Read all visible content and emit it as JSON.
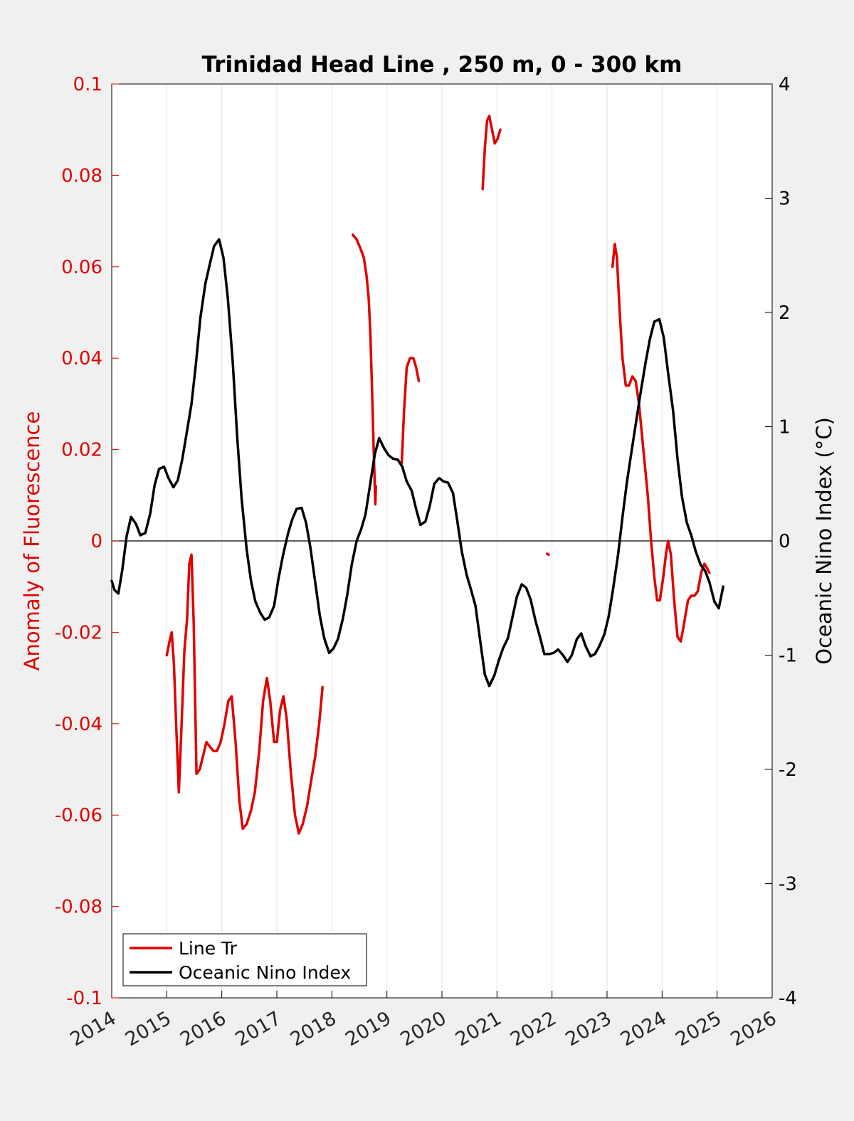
{
  "chart_data": {
    "type": "line",
    "title": "Trinidad Head Line , 250 m, 0 - 300 km",
    "ylabel_left": "Anomaly of Fluorescence",
    "ylabel_right": "Oceanic Nino Index (°C)",
    "xlim": [
      2014,
      2026
    ],
    "ylim_left": [
      -0.1,
      0.1
    ],
    "ylim_right": [
      -4,
      4
    ],
    "grid": "vertical",
    "legend_position": "bottom-left",
    "x_ticks": [
      "2014",
      "2015",
      "2016",
      "2017",
      "2018",
      "2019",
      "2020",
      "2021",
      "2022",
      "2023",
      "2024",
      "2025",
      "2026"
    ],
    "y_ticks_left": [
      "0.1",
      "0.08",
      "0.06",
      "0.04",
      "0.02",
      "0",
      "-0.02",
      "-0.04",
      "-0.06",
      "-0.08",
      "-0.1"
    ],
    "y_ticks_right": [
      "4",
      "3",
      "2",
      "1",
      "0",
      "-1",
      "-2",
      "-3",
      "-4"
    ],
    "colors": {
      "line_tr": "#e00000",
      "oni": "#000000",
      "left_axis": "#e00000",
      "right_axis": "#000000"
    },
    "series": [
      {
        "name": "Line Tr",
        "axis": "left",
        "segments": [
          [
            [
              2015.0,
              -0.025
            ],
            [
              2015.05,
              -0.022
            ],
            [
              2015.09,
              -0.02
            ],
            [
              2015.13,
              -0.027
            ],
            [
              2015.17,
              -0.04
            ],
            [
              2015.22,
              -0.055
            ],
            [
              2015.27,
              -0.04
            ],
            [
              2015.32,
              -0.024
            ],
            [
              2015.37,
              -0.017
            ],
            [
              2015.41,
              -0.005
            ],
            [
              2015.45,
              -0.003
            ],
            [
              2015.49,
              -0.018
            ],
            [
              2015.54,
              -0.051
            ],
            [
              2015.6,
              -0.05
            ],
            [
              2015.66,
              -0.047
            ],
            [
              2015.72,
              -0.044
            ],
            [
              2015.78,
              -0.045
            ],
            [
              2015.85,
              -0.046
            ],
            [
              2015.91,
              -0.046
            ],
            [
              2015.98,
              -0.044
            ],
            [
              2016.05,
              -0.04
            ],
            [
              2016.12,
              -0.035
            ],
            [
              2016.18,
              -0.034
            ],
            [
              2016.25,
              -0.044
            ],
            [
              2016.32,
              -0.057
            ],
            [
              2016.38,
              -0.063
            ],
            [
              2016.45,
              -0.062
            ],
            [
              2016.53,
              -0.059
            ],
            [
              2016.6,
              -0.055
            ],
            [
              2016.68,
              -0.046
            ],
            [
              2016.75,
              -0.035
            ],
            [
              2016.82,
              -0.03
            ],
            [
              2016.88,
              -0.035
            ],
            [
              2016.95,
              -0.044
            ],
            [
              2017.0,
              -0.044
            ],
            [
              2017.06,
              -0.037
            ],
            [
              2017.12,
              -0.034
            ],
            [
              2017.18,
              -0.039
            ],
            [
              2017.25,
              -0.05
            ],
            [
              2017.33,
              -0.06
            ],
            [
              2017.4,
              -0.064
            ],
            [
              2017.47,
              -0.062
            ],
            [
              2017.55,
              -0.058
            ],
            [
              2017.63,
              -0.052
            ],
            [
              2017.7,
              -0.047
            ],
            [
              2017.77,
              -0.04
            ],
            [
              2017.83,
              -0.032
            ]
          ],
          [
            [
              2018.38,
              0.067
            ],
            [
              2018.45,
              0.066
            ],
            [
              2018.52,
              0.064
            ],
            [
              2018.58,
              0.062
            ],
            [
              2018.63,
              0.058
            ],
            [
              2018.67,
              0.053
            ],
            [
              2018.7,
              0.045
            ],
            [
              2018.73,
              0.033
            ],
            [
              2018.76,
              0.02
            ],
            [
              2018.79,
              0.008
            ],
            [
              2018.8,
              0.012
            ]
          ],
          [
            [
              2019.27,
              0.017
            ],
            [
              2019.31,
              0.028
            ],
            [
              2019.36,
              0.038
            ],
            [
              2019.42,
              0.04
            ],
            [
              2019.48,
              0.04
            ],
            [
              2019.53,
              0.038
            ],
            [
              2019.58,
              0.035
            ]
          ],
          [
            [
              2020.74,
              0.077
            ],
            [
              2020.78,
              0.086
            ],
            [
              2020.82,
              0.092
            ],
            [
              2020.86,
              0.093
            ],
            [
              2020.91,
              0.09
            ],
            [
              2020.96,
              0.087
            ],
            [
              2021.01,
              0.088
            ],
            [
              2021.06,
              0.09
            ]
          ],
          [
            [
              2021.91,
              -0.0028
            ],
            [
              2021.94,
              -0.003
            ]
          ],
          [
            [
              2023.1,
              0.06
            ],
            [
              2023.14,
              0.065
            ],
            [
              2023.18,
              0.062
            ],
            [
              2023.23,
              0.05
            ],
            [
              2023.28,
              0.04
            ],
            [
              2023.34,
              0.034
            ],
            [
              2023.4,
              0.034
            ],
            [
              2023.46,
              0.036
            ],
            [
              2023.52,
              0.035
            ],
            [
              2023.58,
              0.03
            ],
            [
              2023.66,
              0.02
            ],
            [
              2023.74,
              0.01
            ],
            [
              2023.8,
              0.0
            ],
            [
              2023.86,
              -0.008
            ],
            [
              2023.91,
              -0.013
            ],
            [
              2023.96,
              -0.013
            ],
            [
              2024.02,
              -0.008
            ],
            [
              2024.07,
              -0.003
            ],
            [
              2024.11,
              0.0
            ],
            [
              2024.16,
              -0.003
            ],
            [
              2024.22,
              -0.013
            ],
            [
              2024.28,
              -0.021
            ],
            [
              2024.34,
              -0.022
            ],
            [
              2024.4,
              -0.018
            ],
            [
              2024.47,
              -0.013
            ],
            [
              2024.53,
              -0.012
            ],
            [
              2024.59,
              -0.012
            ],
            [
              2024.65,
              -0.011
            ],
            [
              2024.71,
              -0.007
            ],
            [
              2024.77,
              -0.005
            ],
            [
              2024.82,
              -0.006
            ],
            [
              2024.86,
              -0.007
            ]
          ]
        ]
      },
      {
        "name": "Oceanic Nino Index",
        "axis": "right",
        "segments": [
          [
            [
              2014.0,
              -0.35
            ],
            [
              2014.05,
              -0.43
            ],
            [
              2014.12,
              -0.46
            ],
            [
              2014.19,
              -0.26
            ],
            [
              2014.27,
              0.04
            ],
            [
              2014.35,
              0.21
            ],
            [
              2014.44,
              0.15
            ],
            [
              2014.52,
              0.05
            ],
            [
              2014.61,
              0.07
            ],
            [
              2014.7,
              0.24
            ],
            [
              2014.78,
              0.49
            ],
            [
              2014.86,
              0.63
            ],
            [
              2014.95,
              0.65
            ],
            [
              2015.03,
              0.55
            ],
            [
              2015.12,
              0.47
            ],
            [
              2015.2,
              0.53
            ],
            [
              2015.28,
              0.71
            ],
            [
              2015.36,
              0.94
            ],
            [
              2015.45,
              1.2
            ],
            [
              2015.53,
              1.55
            ],
            [
              2015.61,
              1.95
            ],
            [
              2015.7,
              2.25
            ],
            [
              2015.78,
              2.42
            ],
            [
              2015.86,
              2.58
            ],
            [
              2015.95,
              2.64
            ],
            [
              2016.03,
              2.48
            ],
            [
              2016.11,
              2.12
            ],
            [
              2016.2,
              1.56
            ],
            [
              2016.28,
              0.91
            ],
            [
              2016.36,
              0.37
            ],
            [
              2016.45,
              -0.07
            ],
            [
              2016.53,
              -0.35
            ],
            [
              2016.61,
              -0.53
            ],
            [
              2016.7,
              -0.63
            ],
            [
              2016.78,
              -0.69
            ],
            [
              2016.86,
              -0.67
            ],
            [
              2016.95,
              -0.57
            ],
            [
              2017.03,
              -0.33
            ],
            [
              2017.11,
              -0.13
            ],
            [
              2017.2,
              0.06
            ],
            [
              2017.28,
              0.19
            ],
            [
              2017.36,
              0.28
            ],
            [
              2017.45,
              0.29
            ],
            [
              2017.53,
              0.16
            ],
            [
              2017.61,
              -0.06
            ],
            [
              2017.7,
              -0.37
            ],
            [
              2017.78,
              -0.65
            ],
            [
              2017.86,
              -0.85
            ],
            [
              2017.95,
              -0.98
            ],
            [
              2018.03,
              -0.94
            ],
            [
              2018.11,
              -0.86
            ],
            [
              2018.2,
              -0.68
            ],
            [
              2018.28,
              -0.47
            ],
            [
              2018.36,
              -0.21
            ],
            [
              2018.45,
              0.0
            ],
            [
              2018.53,
              0.1
            ],
            [
              2018.61,
              0.23
            ],
            [
              2018.7,
              0.51
            ],
            [
              2018.78,
              0.76
            ],
            [
              2018.86,
              0.9
            ],
            [
              2018.95,
              0.81
            ],
            [
              2019.03,
              0.75
            ],
            [
              2019.11,
              0.72
            ],
            [
              2019.2,
              0.71
            ],
            [
              2019.28,
              0.65
            ],
            [
              2019.36,
              0.52
            ],
            [
              2019.45,
              0.44
            ],
            [
              2019.53,
              0.28
            ],
            [
              2019.61,
              0.14
            ],
            [
              2019.7,
              0.17
            ],
            [
              2019.78,
              0.31
            ],
            [
              2019.86,
              0.5
            ],
            [
              2019.95,
              0.55
            ],
            [
              2020.03,
              0.52
            ],
            [
              2020.11,
              0.51
            ],
            [
              2020.2,
              0.42
            ],
            [
              2020.28,
              0.17
            ],
            [
              2020.36,
              -0.09
            ],
            [
              2020.45,
              -0.3
            ],
            [
              2020.53,
              -0.43
            ],
            [
              2020.61,
              -0.57
            ],
            [
              2020.7,
              -0.89
            ],
            [
              2020.78,
              -1.17
            ],
            [
              2020.86,
              -1.27
            ],
            [
              2020.95,
              -1.18
            ],
            [
              2021.03,
              -1.05
            ],
            [
              2021.11,
              -0.94
            ],
            [
              2021.2,
              -0.85
            ],
            [
              2021.28,
              -0.67
            ],
            [
              2021.36,
              -0.49
            ],
            [
              2021.45,
              -0.38
            ],
            [
              2021.53,
              -0.41
            ],
            [
              2021.61,
              -0.51
            ],
            [
              2021.7,
              -0.7
            ],
            [
              2021.78,
              -0.84
            ],
            [
              2021.86,
              -0.99
            ],
            [
              2021.95,
              -0.99
            ],
            [
              2022.03,
              -0.98
            ],
            [
              2022.11,
              -0.95
            ],
            [
              2022.2,
              -1.0
            ],
            [
              2022.28,
              -1.06
            ],
            [
              2022.36,
              -1.0
            ],
            [
              2022.45,
              -0.86
            ],
            [
              2022.53,
              -0.81
            ],
            [
              2022.61,
              -0.92
            ],
            [
              2022.7,
              -1.01
            ],
            [
              2022.78,
              -0.99
            ],
            [
              2022.86,
              -0.92
            ],
            [
              2022.95,
              -0.82
            ],
            [
              2023.03,
              -0.66
            ],
            [
              2023.11,
              -0.42
            ],
            [
              2023.2,
              -0.12
            ],
            [
              2023.28,
              0.21
            ],
            [
              2023.36,
              0.51
            ],
            [
              2023.45,
              0.8
            ],
            [
              2023.53,
              1.05
            ],
            [
              2023.61,
              1.3
            ],
            [
              2023.7,
              1.56
            ],
            [
              2023.78,
              1.77
            ],
            [
              2023.86,
              1.92
            ],
            [
              2023.95,
              1.94
            ],
            [
              2024.03,
              1.78
            ],
            [
              2024.11,
              1.47
            ],
            [
              2024.2,
              1.14
            ],
            [
              2024.28,
              0.72
            ],
            [
              2024.36,
              0.39
            ],
            [
              2024.45,
              0.16
            ],
            [
              2024.53,
              0.05
            ],
            [
              2024.61,
              -0.09
            ],
            [
              2024.7,
              -0.21
            ],
            [
              2024.78,
              -0.26
            ],
            [
              2024.86,
              -0.36
            ],
            [
              2024.95,
              -0.53
            ],
            [
              2025.03,
              -0.59
            ],
            [
              2025.11,
              -0.4
            ]
          ]
        ]
      }
    ]
  }
}
